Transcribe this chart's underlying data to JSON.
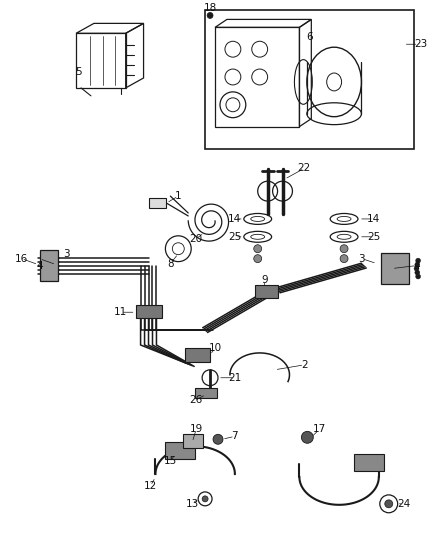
{
  "bg_color": "#ffffff",
  "line_color": "#1a1a1a",
  "label_color": "#111111",
  "label_fontsize": 7.5,
  "fig_width": 4.38,
  "fig_height": 5.33,
  "dpi": 100
}
